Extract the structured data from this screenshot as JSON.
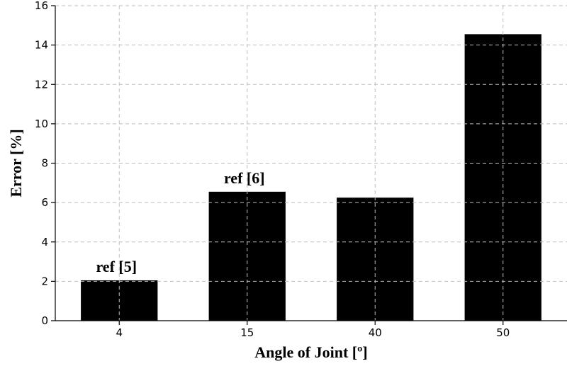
{
  "chart_data": {
    "type": "bar",
    "categories": [
      "4",
      "15",
      "40",
      "50"
    ],
    "values": [
      2.05,
      6.55,
      6.25,
      14.55
    ],
    "bar_color": "#000000",
    "annotations": [
      {
        "category": "4",
        "text": "ref [5]"
      },
      {
        "category": "15",
        "text": "ref [6]"
      }
    ],
    "xlabel": "Angle of Joint [º]",
    "ylabel": "Error [%]",
    "ylim": [
      0,
      16
    ],
    "yticks": [
      0,
      2,
      4,
      6,
      8,
      10,
      12,
      14,
      16
    ],
    "grid": true,
    "grid_style": "dashed"
  }
}
